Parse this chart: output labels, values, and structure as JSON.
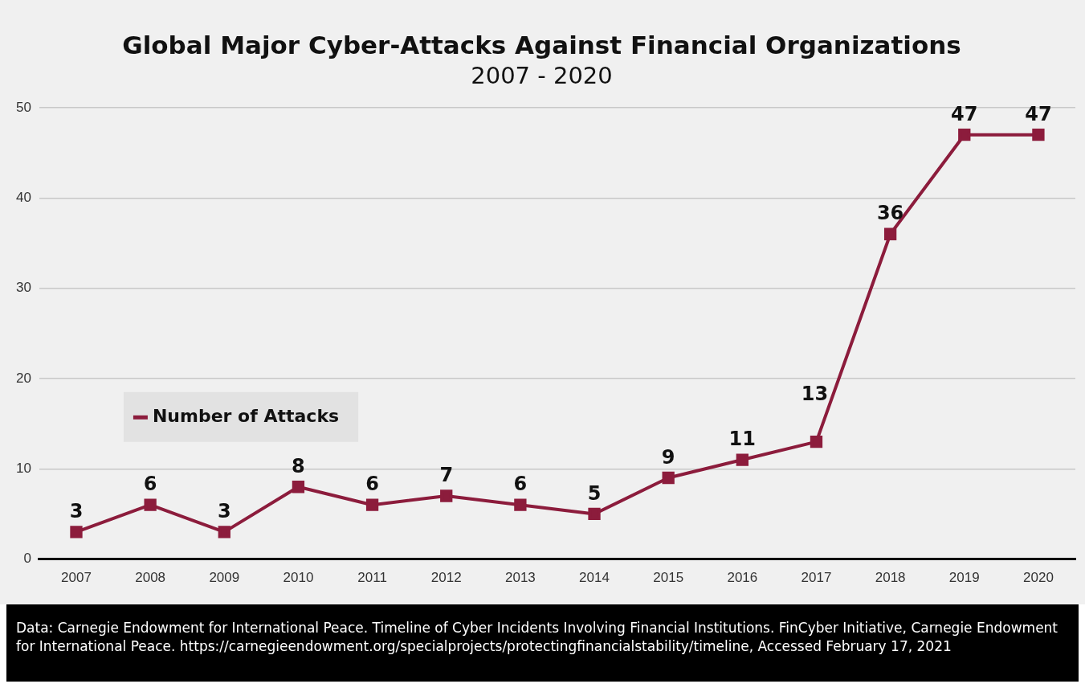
{
  "chart_data": {
    "type": "line",
    "title": "Global Major Cyber-Attacks Against Financial Organizations",
    "subtitle": "2007 - 2020",
    "categories": [
      "2007",
      "2008",
      "2009",
      "2010",
      "2011",
      "2012",
      "2013",
      "2014",
      "2015",
      "2016",
      "2017",
      "2018",
      "2019",
      "2020"
    ],
    "series": [
      {
        "name": "Number of Attacks",
        "color": "#8c1c3c",
        "values": [
          3,
          6,
          3,
          8,
          6,
          7,
          6,
          5,
          9,
          11,
          13,
          36,
          47,
          47
        ]
      }
    ],
    "ylim": [
      0,
      50
    ],
    "yticks": [
      0,
      10,
      20,
      30,
      40,
      50
    ],
    "grid": "y",
    "legend": "left",
    "marker": "square",
    "line_style": "solid",
    "data_labels": true,
    "annotations": [
      "Data: Carnegie Endowment for International Peace. Timeline of Cyber Incidents Involving Financial Institutions. FinCyber Initiative, Carnegie Endowment for International Peace. https://carnegieendowment.org/specialprojects/protectingfinancialstability/timeline, Accessed February 17, 2021"
    ]
  }
}
